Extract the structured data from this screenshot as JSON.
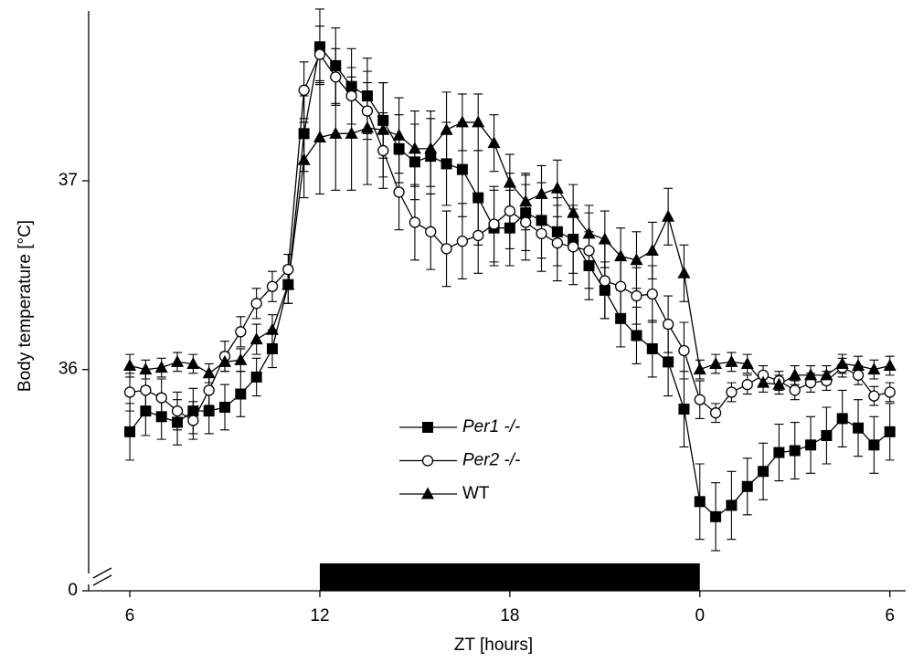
{
  "chart_data": {
    "type": "line",
    "x_label": "ZT [hours]",
    "y_label": "Body temperature [°C]",
    "x": [
      6,
      6.5,
      7,
      7.5,
      8,
      8.5,
      9,
      9.5,
      10,
      10.5,
      11,
      11.5,
      12,
      12.5,
      13,
      13.5,
      14,
      14.5,
      15,
      15.5,
      16,
      16.5,
      17,
      17.5,
      18,
      18.5,
      19,
      19.5,
      20,
      20.5,
      21,
      21.5,
      22,
      22.5,
      23,
      23.5,
      24,
      24.5,
      25,
      25.5,
      26,
      26.5,
      27,
      27.5,
      28,
      28.5,
      29,
      29.5,
      30
    ],
    "series": [
      {
        "name": "Per1 -/-",
        "italic": true,
        "marker": "square",
        "color": "#000000",
        "values": [
          35.67,
          35.78,
          35.75,
          35.72,
          35.78,
          35.78,
          35.8,
          35.87,
          35.96,
          36.11,
          36.45,
          37.25,
          37.71,
          37.61,
          37.5,
          37.45,
          37.32,
          37.17,
          37.1,
          37.13,
          37.09,
          37.06,
          36.91,
          36.75,
          36.75,
          36.83,
          36.79,
          36.73,
          36.69,
          36.55,
          36.42,
          36.27,
          36.18,
          36.11,
          36.04,
          35.79,
          35.3,
          35.22,
          35.28,
          35.38,
          35.46,
          35.56,
          35.57,
          35.6,
          35.65,
          35.74,
          35.69,
          35.6,
          35.67
        ],
        "errors": [
          0.15,
          0.13,
          0.12,
          0.12,
          0.12,
          0.12,
          0.12,
          0.12,
          0.1,
          0.1,
          0.1,
          0.2,
          0.2,
          0.2,
          0.2,
          0.2,
          0.2,
          0.18,
          0.2,
          0.2,
          0.22,
          0.25,
          0.25,
          0.2,
          0.2,
          0.2,
          0.2,
          0.18,
          0.18,
          0.18,
          0.15,
          0.15,
          0.15,
          0.15,
          0.18,
          0.2,
          0.2,
          0.18,
          0.18,
          0.15,
          0.15,
          0.15,
          0.15,
          0.15,
          0.15,
          0.15,
          0.15,
          0.15,
          0.15
        ]
      },
      {
        "name": "Per2 -/-",
        "italic": true,
        "marker": "circle",
        "color": "#000000",
        "values": [
          35.88,
          35.89,
          35.85,
          35.78,
          35.73,
          35.89,
          36.07,
          36.2,
          36.35,
          36.44,
          36.53,
          37.48,
          37.67,
          37.55,
          37.45,
          37.37,
          37.16,
          36.94,
          36.78,
          36.73,
          36.64,
          36.68,
          36.71,
          36.77,
          36.84,
          36.78,
          36.72,
          36.67,
          36.65,
          36.63,
          36.47,
          36.44,
          36.39,
          36.4,
          36.24,
          36.1,
          35.84,
          35.77,
          35.88,
          35.92,
          35.97,
          35.94,
          35.89,
          35.93,
          35.94,
          36.01,
          35.97,
          35.86,
          35.88
        ],
        "errors": [
          0.1,
          0.1,
          0.1,
          0.1,
          0.1,
          0.08,
          0.08,
          0.08,
          0.08,
          0.08,
          0.08,
          0.15,
          0.15,
          0.15,
          0.15,
          0.15,
          0.2,
          0.2,
          0.2,
          0.2,
          0.2,
          0.2,
          0.2,
          0.2,
          0.2,
          0.2,
          0.2,
          0.2,
          0.2,
          0.2,
          0.2,
          0.15,
          0.15,
          0.15,
          0.15,
          0.15,
          0.1,
          0.05,
          0.05,
          0.05,
          0.05,
          0.05,
          0.05,
          0.05,
          0.05,
          0.05,
          0.05,
          0.05,
          0.05
        ]
      },
      {
        "name": "WT",
        "italic": false,
        "marker": "triangle",
        "color": "#000000",
        "values": [
          36.02,
          36.0,
          36.01,
          36.04,
          36.03,
          35.98,
          36.04,
          36.05,
          36.16,
          36.21,
          36.45,
          37.11,
          37.23,
          37.25,
          37.25,
          37.28,
          37.27,
          37.24,
          37.17,
          37.17,
          37.27,
          37.31,
          37.31,
          37.2,
          36.99,
          36.89,
          36.93,
          36.96,
          36.83,
          36.72,
          36.69,
          36.6,
          36.58,
          36.63,
          36.81,
          36.51,
          36.0,
          36.03,
          36.04,
          36.03,
          35.93,
          35.92,
          35.97,
          35.97,
          35.97,
          36.03,
          36.02,
          36.0,
          36.02
        ],
        "errors": [
          0.06,
          0.05,
          0.05,
          0.05,
          0.05,
          0.05,
          0.05,
          0.06,
          0.08,
          0.08,
          0.1,
          0.2,
          0.3,
          0.3,
          0.3,
          0.3,
          0.25,
          0.2,
          0.2,
          0.2,
          0.2,
          0.15,
          0.15,
          0.15,
          0.15,
          0.15,
          0.15,
          0.15,
          0.15,
          0.15,
          0.15,
          0.15,
          0.15,
          0.15,
          0.15,
          0.15,
          0.05,
          0.05,
          0.05,
          0.05,
          0.05,
          0.05,
          0.05,
          0.05,
          0.05,
          0.05,
          0.05,
          0.05,
          0.05
        ]
      }
    ],
    "xlim": [
      4.7,
      30.5
    ],
    "xticks": [
      6,
      12,
      18,
      {
        "value": 24,
        "label": "0"
      },
      {
        "value": 30,
        "label": "6"
      }
    ],
    "ylim": [
      34.9,
      37.9
    ],
    "yticks": [
      36,
      37
    ],
    "lower_yticks": [
      0
    ],
    "dark_phase": [
      12,
      24
    ],
    "dark_color": "#000000"
  }
}
